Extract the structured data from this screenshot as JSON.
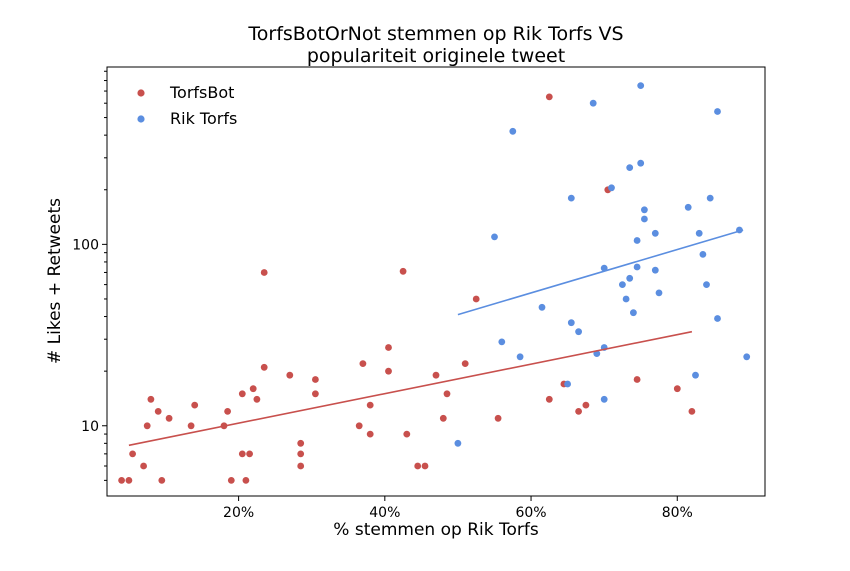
{
  "chart_data": {
    "type": "scatter",
    "title_lines": [
      "TorfsBotOrNot stemmen op Rik Torfs VS",
      "populariteit originele tweet"
    ],
    "xlabel": "% stemmen op Rik Torfs",
    "ylabel": "# Likes + Retweets",
    "x_scale": "linear",
    "y_scale": "log",
    "xlim": [
      0.02,
      0.92
    ],
    "ylim": [
      4.1,
      950
    ],
    "x_ticks": [
      0.2,
      0.4,
      0.6,
      0.8
    ],
    "x_tick_labels": [
      "20%",
      "40%",
      "60%",
      "80%"
    ],
    "y_ticks": [
      10,
      100
    ],
    "y_tick_labels": [
      "10",
      "100"
    ],
    "legend_position": "top-left",
    "series": [
      {
        "name": "TorfsBot",
        "color": "#c8504d",
        "trend": [
          [
            0.05,
            7.8
          ],
          [
            0.82,
            33
          ]
        ],
        "points": [
          [
            0.04,
            5
          ],
          [
            0.05,
            5
          ],
          [
            0.055,
            7
          ],
          [
            0.07,
            6
          ],
          [
            0.075,
            10
          ],
          [
            0.08,
            14
          ],
          [
            0.09,
            12
          ],
          [
            0.095,
            5
          ],
          [
            0.105,
            11
          ],
          [
            0.135,
            10
          ],
          [
            0.14,
            13
          ],
          [
            0.18,
            10
          ],
          [
            0.185,
            12
          ],
          [
            0.19,
            5
          ],
          [
            0.205,
            15
          ],
          [
            0.205,
            7
          ],
          [
            0.21,
            5
          ],
          [
            0.215,
            7
          ],
          [
            0.22,
            16
          ],
          [
            0.225,
            14
          ],
          [
            0.235,
            70
          ],
          [
            0.235,
            21
          ],
          [
            0.27,
            19
          ],
          [
            0.285,
            8
          ],
          [
            0.285,
            7
          ],
          [
            0.285,
            6
          ],
          [
            0.305,
            18
          ],
          [
            0.305,
            15
          ],
          [
            0.365,
            10
          ],
          [
            0.37,
            22
          ],
          [
            0.38,
            13
          ],
          [
            0.38,
            9
          ],
          [
            0.405,
            27
          ],
          [
            0.405,
            20
          ],
          [
            0.425,
            71
          ],
          [
            0.43,
            9
          ],
          [
            0.445,
            6
          ],
          [
            0.455,
            6
          ],
          [
            0.47,
            19
          ],
          [
            0.48,
            11
          ],
          [
            0.485,
            15
          ],
          [
            0.51,
            22
          ],
          [
            0.525,
            50
          ],
          [
            0.555,
            11
          ],
          [
            0.625,
            650
          ],
          [
            0.625,
            14
          ],
          [
            0.645,
            17
          ],
          [
            0.665,
            12
          ],
          [
            0.675,
            13
          ],
          [
            0.705,
            200
          ],
          [
            0.745,
            18
          ],
          [
            0.8,
            16
          ],
          [
            0.82,
            12
          ]
        ]
      },
      {
        "name": "Rik Torfs",
        "color": "#5b8ee0",
        "trend": [
          [
            0.5,
            41
          ],
          [
            0.89,
            120
          ]
        ],
        "points": [
          [
            0.5,
            8
          ],
          [
            0.55,
            110
          ],
          [
            0.56,
            29
          ],
          [
            0.575,
            420
          ],
          [
            0.585,
            24
          ],
          [
            0.615,
            45
          ],
          [
            0.65,
            17
          ],
          [
            0.655,
            180
          ],
          [
            0.655,
            37
          ],
          [
            0.665,
            33
          ],
          [
            0.685,
            600
          ],
          [
            0.69,
            25
          ],
          [
            0.7,
            74
          ],
          [
            0.7,
            27
          ],
          [
            0.7,
            14
          ],
          [
            0.71,
            205
          ],
          [
            0.725,
            60
          ],
          [
            0.73,
            50
          ],
          [
            0.735,
            265
          ],
          [
            0.735,
            65
          ],
          [
            0.74,
            42
          ],
          [
            0.745,
            105
          ],
          [
            0.745,
            75
          ],
          [
            0.75,
            750
          ],
          [
            0.75,
            280
          ],
          [
            0.755,
            155
          ],
          [
            0.755,
            138
          ],
          [
            0.77,
            115
          ],
          [
            0.77,
            72
          ],
          [
            0.775,
            54
          ],
          [
            0.815,
            160
          ],
          [
            0.825,
            19
          ],
          [
            0.83,
            115
          ],
          [
            0.835,
            88
          ],
          [
            0.84,
            60
          ],
          [
            0.845,
            180
          ],
          [
            0.855,
            540
          ],
          [
            0.855,
            39
          ],
          [
            0.885,
            120
          ],
          [
            0.895,
            24
          ]
        ]
      }
    ]
  }
}
